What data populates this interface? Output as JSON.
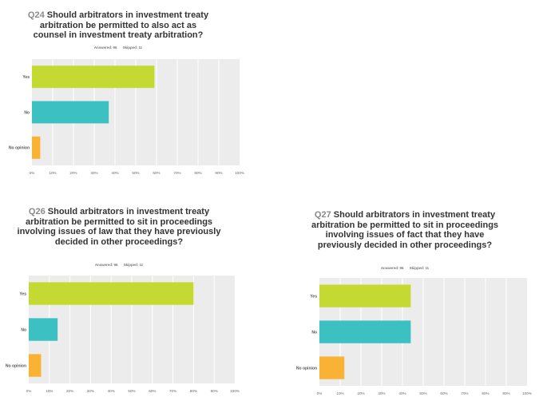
{
  "charts": [
    {
      "id": "q24",
      "qnum": "Q24",
      "title": "Should arbitrators in investment treaty arbitration be permitted to also act as counsel in investment treaty arbitration?",
      "answered": "Answered: 96",
      "skipped": "Skipped: 11"
    },
    {
      "id": "q26",
      "qnum": "Q26",
      "title": "Should arbitrators in investment treaty arbitration be permitted to sit in proceedings involving issues of law that they have previously decided in other proceedings?",
      "answered": "Answered: 96",
      "skipped": "Skipped: 11"
    },
    {
      "id": "q27",
      "qnum": "Q27",
      "title": "Should arbitrators in investment treaty arbitration be permitted to sit in proceedings involving issues of fact that they have previously decided in other proceedings?",
      "answered": "Answered: 96",
      "skipped": "Skipped: 11"
    }
  ],
  "colors": {
    "Yes": "#c5d933",
    "No": "#3cc1c3",
    "No opinion": "#f9b233",
    "plot_bg": "#ececec",
    "grid": "#ffffff"
  },
  "chart_data": [
    {
      "type": "bar",
      "orientation": "horizontal",
      "title": "Q24 Should arbitrators in investment treaty arbitration be permitted to also act as counsel in investment treaty arbitration?",
      "categories": [
        "Yes",
        "No",
        "No opinion"
      ],
      "values": [
        59,
        37,
        4
      ],
      "xlim": [
        0,
        100
      ],
      "ticks": [
        "0%",
        "10%",
        "20%",
        "30%",
        "40%",
        "50%",
        "60%",
        "70%",
        "80%",
        "90%",
        "100%"
      ],
      "grid": true
    },
    {
      "type": "bar",
      "orientation": "horizontal",
      "title": "Q26 Should arbitrators in investment treaty arbitration be permitted to sit in proceedings involving issues of law that they have previously decided in other proceedings?",
      "categories": [
        "Yes",
        "No",
        "No opinion"
      ],
      "values": [
        80,
        14,
        6
      ],
      "xlim": [
        0,
        100
      ],
      "ticks": [
        "0%",
        "10%",
        "20%",
        "30%",
        "40%",
        "50%",
        "60%",
        "70%",
        "80%",
        "90%",
        "100%"
      ],
      "grid": true
    },
    {
      "type": "bar",
      "orientation": "horizontal",
      "title": "Q27 Should arbitrators in investment treaty arbitration be permitted to sit in proceedings involving issues of fact that they have previously decided in other proceedings?",
      "categories": [
        "Yes",
        "No",
        "No opinion"
      ],
      "values": [
        44,
        44,
        12
      ],
      "xlim": [
        0,
        100
      ],
      "ticks": [
        "0%",
        "10%",
        "20%",
        "30%",
        "40%",
        "50%",
        "60%",
        "70%",
        "80%",
        "90%",
        "100%"
      ],
      "grid": true
    }
  ]
}
